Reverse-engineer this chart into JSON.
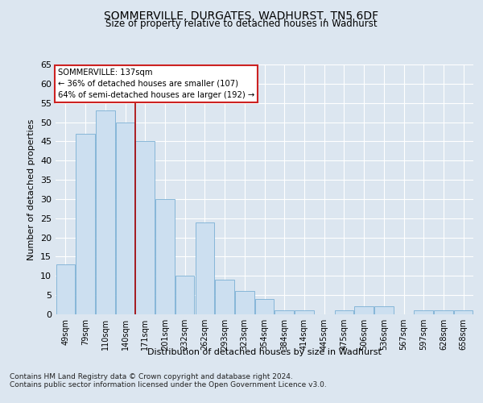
{
  "title": "SOMMERVILLE, DURGATES, WADHURST, TN5 6DF",
  "subtitle": "Size of property relative to detached houses in Wadhurst",
  "xlabel": "Distribution of detached houses by size in Wadhurst",
  "ylabel": "Number of detached properties",
  "categories": [
    "49sqm",
    "79sqm",
    "110sqm",
    "140sqm",
    "171sqm",
    "201sqm",
    "232sqm",
    "262sqm",
    "293sqm",
    "323sqm",
    "354sqm",
    "384sqm",
    "414sqm",
    "445sqm",
    "475sqm",
    "506sqm",
    "536sqm",
    "567sqm",
    "597sqm",
    "628sqm",
    "658sqm"
  ],
  "values": [
    13,
    47,
    53,
    50,
    45,
    30,
    10,
    24,
    9,
    6,
    4,
    1,
    1,
    0,
    1,
    2,
    2,
    0,
    1,
    1,
    1
  ],
  "bar_color": "#ccdff0",
  "bar_edge_color": "#7aafd4",
  "bar_edge_width": 0.6,
  "background_color": "#dce6f0",
  "grid_color": "#ffffff",
  "red_line_x": 3.5,
  "annotation_title": "SOMMERVILLE: 137sqm",
  "annotation_line1": "← 36% of detached houses are smaller (107)",
  "annotation_line2": "64% of semi-detached houses are larger (192) →",
  "annotation_box_facecolor": "#ffffff",
  "annotation_box_edgecolor": "#cc2222",
  "footer_line1": "Contains HM Land Registry data © Crown copyright and database right 2024.",
  "footer_line2": "Contains public sector information licensed under the Open Government Licence v3.0.",
  "ylim": [
    0,
    65
  ],
  "yticks": [
    0,
    5,
    10,
    15,
    20,
    25,
    30,
    35,
    40,
    45,
    50,
    55,
    60,
    65
  ],
  "fig_facecolor": "#dce6f0"
}
